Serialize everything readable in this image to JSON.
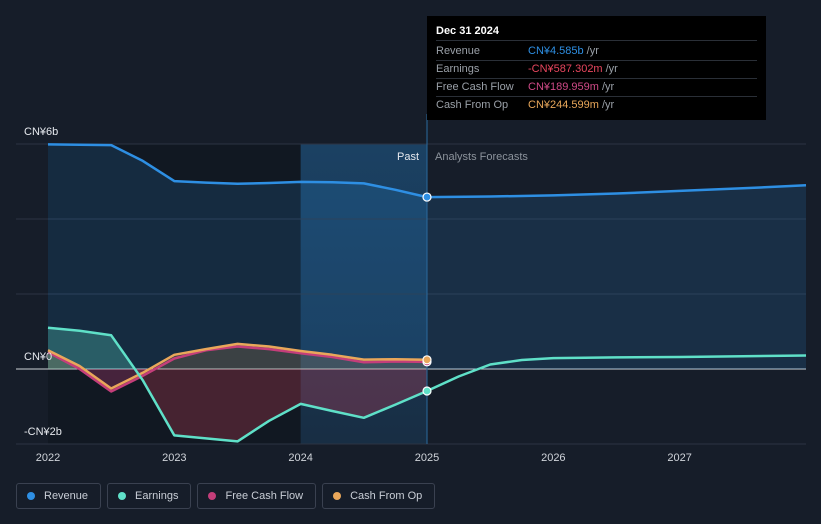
{
  "chart_data": {
    "type": "line",
    "y_tick_labels": [
      "CN¥6b",
      "CN¥0",
      "-CN¥2b"
    ],
    "ylim": [
      -2,
      6
    ],
    "x_tick_labels": [
      "2022",
      "2023",
      "2024",
      "2025",
      "2026",
      "2027"
    ],
    "xlim": [
      2022,
      2028
    ],
    "past_label": "Past",
    "forecast_label": "Analysts Forecasts",
    "divider_x": 2025.0,
    "series": [
      {
        "name": "Revenue",
        "color": "#2e8fe3",
        "points": [
          [
            2022.0,
            5.99
          ],
          [
            2022.25,
            5.98
          ],
          [
            2022.5,
            5.97
          ],
          [
            2022.75,
            5.55
          ],
          [
            2023.0,
            5.01
          ],
          [
            2023.25,
            4.97
          ],
          [
            2023.5,
            4.94
          ],
          [
            2023.75,
            4.96
          ],
          [
            2024.0,
            4.99
          ],
          [
            2024.25,
            4.98
          ],
          [
            2024.5,
            4.95
          ],
          [
            2024.75,
            4.78
          ],
          [
            2025.0,
            4.585
          ],
          [
            2025.5,
            4.6
          ],
          [
            2026.0,
            4.63
          ],
          [
            2026.5,
            4.68
          ],
          [
            2027.0,
            4.75
          ],
          [
            2027.5,
            4.82
          ],
          [
            2028.0,
            4.9
          ]
        ]
      },
      {
        "name": "Earnings",
        "color": "#5fe0c8",
        "points": [
          [
            2022.0,
            1.1
          ],
          [
            2022.25,
            1.02
          ],
          [
            2022.5,
            0.9
          ],
          [
            2022.75,
            -0.3
          ],
          [
            2023.0,
            -1.77
          ],
          [
            2023.25,
            -1.85
          ],
          [
            2023.5,
            -1.93
          ],
          [
            2023.75,
            -1.38
          ],
          [
            2024.0,
            -0.93
          ],
          [
            2024.25,
            -1.12
          ],
          [
            2024.5,
            -1.3
          ],
          [
            2024.75,
            -0.95
          ],
          [
            2025.0,
            -0.587
          ],
          [
            2025.25,
            -0.2
          ],
          [
            2025.5,
            0.12
          ],
          [
            2025.75,
            0.24
          ],
          [
            2026.0,
            0.29
          ],
          [
            2026.5,
            0.31
          ],
          [
            2027.0,
            0.32
          ],
          [
            2027.5,
            0.34
          ],
          [
            2028.0,
            0.36
          ]
        ]
      },
      {
        "name": "Free Cash Flow",
        "color": "#c43e7a",
        "points": [
          [
            2022.0,
            0.45
          ],
          [
            2022.25,
            0.0
          ],
          [
            2022.5,
            -0.6
          ],
          [
            2022.75,
            -0.18
          ],
          [
            2023.0,
            0.28
          ],
          [
            2023.25,
            0.5
          ],
          [
            2023.5,
            0.6
          ],
          [
            2023.75,
            0.53
          ],
          [
            2024.0,
            0.42
          ],
          [
            2024.25,
            0.32
          ],
          [
            2024.5,
            0.18
          ],
          [
            2024.75,
            0.2
          ],
          [
            2025.0,
            0.19
          ]
        ]
      },
      {
        "name": "Cash From Op",
        "color": "#e9a75a",
        "points": [
          [
            2022.0,
            0.5
          ],
          [
            2022.25,
            0.08
          ],
          [
            2022.5,
            -0.52
          ],
          [
            2022.75,
            -0.1
          ],
          [
            2023.0,
            0.38
          ],
          [
            2023.25,
            0.53
          ],
          [
            2023.5,
            0.67
          ],
          [
            2023.75,
            0.6
          ],
          [
            2024.0,
            0.48
          ],
          [
            2024.25,
            0.38
          ],
          [
            2024.5,
            0.25
          ],
          [
            2024.75,
            0.26
          ],
          [
            2025.0,
            0.245
          ]
        ]
      }
    ],
    "grid": true,
    "legend_position": "bottom-left"
  },
  "tooltip": {
    "date": "Dec 31 2024",
    "rows": [
      {
        "label": "Revenue",
        "value": "CN¥4.585b",
        "unit": "/yr",
        "color": "#2e8fe3"
      },
      {
        "label": "Earnings",
        "value": "-CN¥587.302m",
        "unit": "/yr",
        "color": "#e8465e"
      },
      {
        "label": "Free Cash Flow",
        "value": "CN¥189.959m",
        "unit": "/yr",
        "color": "#d04a87"
      },
      {
        "label": "Cash From Op",
        "value": "CN¥244.599m",
        "unit": "/yr",
        "color": "#e9a75a"
      }
    ]
  },
  "legend": [
    {
      "label": "Revenue",
      "color": "#2e8fe3"
    },
    {
      "label": "Earnings",
      "color": "#5fe0c8"
    },
    {
      "label": "Free Cash Flow",
      "color": "#c43e7a"
    },
    {
      "label": "Cash From Op",
      "color": "#e9a75a"
    }
  ]
}
